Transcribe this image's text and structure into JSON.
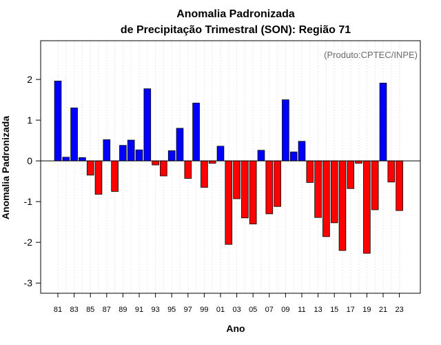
{
  "chart_data": {
    "type": "bar",
    "title_line1": "Anomalia Padronizada",
    "title_line2": "de Precipitação Trimestral (SON): Região 71",
    "xlabel": "Ano",
    "ylabel": "Anomalia Padronizada",
    "credit": "(Produto:CPTEC/INPE)",
    "ylim": [
      -3.25,
      2.95
    ],
    "yticks": [
      -3,
      -2,
      -1,
      0,
      1,
      2
    ],
    "grid": "vertical dotted",
    "positive_color": "#0000ff",
    "negative_color": "#ff0000",
    "categories": [
      "81",
      "82",
      "83",
      "84",
      "85",
      "86",
      "87",
      "88",
      "89",
      "90",
      "91",
      "92",
      "93",
      "94",
      "95",
      "96",
      "97",
      "98",
      "99",
      "00",
      "01",
      "02",
      "03",
      "04",
      "05",
      "06",
      "07",
      "08",
      "09",
      "10",
      "11",
      "12",
      "13",
      "14",
      "15",
      "16",
      "17",
      "18",
      "19",
      "20",
      "21",
      "22",
      "23"
    ],
    "xtick_labels": [
      "81",
      "83",
      "85",
      "87",
      "89",
      "91",
      "93",
      "95",
      "97",
      "99",
      "01",
      "03",
      "05",
      "07",
      "09",
      "11",
      "13",
      "15",
      "17",
      "19",
      "21",
      "23"
    ],
    "values": [
      1.96,
      0.09,
      1.3,
      0.08,
      -0.35,
      -0.82,
      0.52,
      -0.75,
      0.38,
      0.51,
      0.27,
      1.77,
      -0.1,
      -0.37,
      0.25,
      0.8,
      -0.43,
      1.42,
      -0.65,
      -0.06,
      0.36,
      -2.05,
      -0.93,
      -1.4,
      -1.55,
      0.26,
      -1.3,
      -1.12,
      1.5,
      0.22,
      0.48,
      -0.53,
      -1.39,
      -1.86,
      -1.52,
      -2.2,
      -0.68,
      -0.06,
      -2.27,
      -1.2,
      1.91,
      -0.52,
      -1.22
    ]
  }
}
